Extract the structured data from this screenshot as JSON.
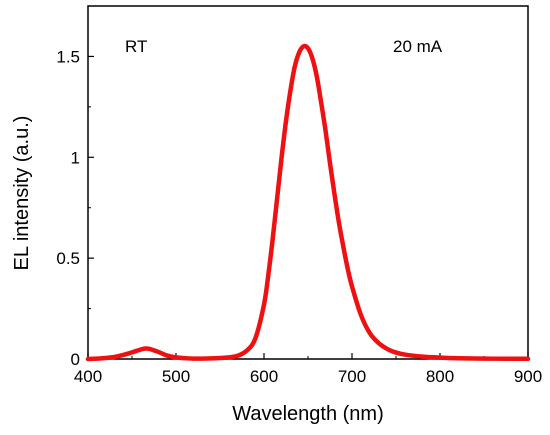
{
  "chart_data": {
    "type": "line",
    "title": "",
    "xlabel": "Wavelength (nm)",
    "ylabel": "EL intensity (a.u.)",
    "xlim": [
      400,
      900
    ],
    "ylim": [
      0,
      1.75
    ],
    "x_ticks": [
      400,
      500,
      600,
      700,
      800,
      900
    ],
    "x_tick_labels": [
      "400",
      "500",
      "600",
      "700",
      "800",
      "900"
    ],
    "y_ticks": [
      0,
      0.5,
      1,
      1.5
    ],
    "y_tick_labels": [
      "0",
      "0.5",
      "1",
      "1.5"
    ],
    "grid": false,
    "annotations": [
      "RT",
      "20 mA"
    ],
    "series": [
      {
        "color": "#ee1111",
        "x": [
          400,
          410,
          420,
          430,
          440,
          450,
          460,
          465,
          470,
          480,
          490,
          500,
          510,
          520,
          530,
          540,
          550,
          560,
          570,
          580,
          590,
          600,
          605,
          610,
          615,
          620,
          625,
          630,
          635,
          640,
          645,
          650,
          655,
          660,
          665,
          670,
          675,
          680,
          685,
          690,
          695,
          700,
          710,
          720,
          730,
          740,
          750,
          760,
          780,
          800,
          820,
          850,
          880,
          900
        ],
        "y": [
          0.0,
          0.002,
          0.005,
          0.01,
          0.02,
          0.033,
          0.047,
          0.052,
          0.05,
          0.035,
          0.017,
          0.008,
          0.004,
          0.002,
          0.002,
          0.003,
          0.005,
          0.008,
          0.016,
          0.04,
          0.1,
          0.27,
          0.42,
          0.6,
          0.8,
          1.0,
          1.18,
          1.33,
          1.45,
          1.52,
          1.55,
          1.54,
          1.49,
          1.4,
          1.27,
          1.13,
          0.97,
          0.82,
          0.68,
          0.56,
          0.45,
          0.36,
          0.22,
          0.13,
          0.08,
          0.05,
          0.032,
          0.022,
          0.012,
          0.007,
          0.004,
          0.002,
          0.001,
          0.001
        ]
      }
    ]
  }
}
